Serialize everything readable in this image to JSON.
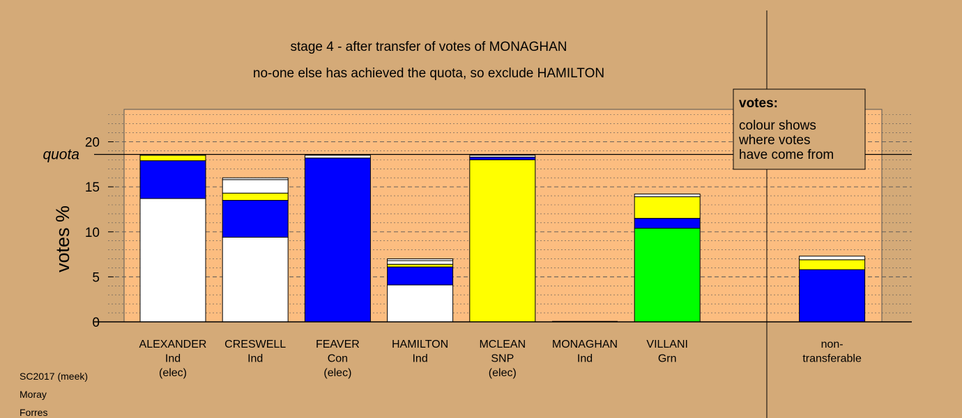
{
  "chart_data": {
    "type": "bar",
    "stacked": true,
    "title_lines": [
      "stage 4 - after transfer of votes of MONAGHAN",
      "no-one else has achieved the quota, so exclude HAMILTON"
    ],
    "ylabel": "votes %",
    "ylim": [
      0,
      23.6
    ],
    "yticks": [
      0,
      5,
      10,
      15,
      20
    ],
    "quota": 18.6,
    "quota_label": "quota",
    "categories": [
      {
        "lines": [
          "ALEXANDER",
          "Ind",
          "(elec)"
        ]
      },
      {
        "lines": [
          "CRESWELL",
          "Ind"
        ]
      },
      {
        "lines": [
          "FEAVER",
          "Con",
          "(elec)"
        ]
      },
      {
        "lines": [
          "HAMILTON",
          "Ind"
        ]
      },
      {
        "lines": [
          "MCLEAN",
          "SNP",
          "(elec)"
        ]
      },
      {
        "lines": [
          "MONAGHAN",
          "Ind"
        ]
      },
      {
        "lines": [
          "VILLANI",
          "Grn"
        ]
      },
      {
        "lines": []
      },
      {
        "lines": [
          "non-",
          "transferable"
        ]
      }
    ],
    "segments": [
      [
        {
          "value": 13.7,
          "color": "#ffffff"
        },
        {
          "value": 4.2,
          "color": "#0000ff"
        },
        {
          "value": 0.6,
          "color": "#ffff00"
        },
        {
          "value": 0.1,
          "color": "#ffffff"
        }
      ],
      [
        {
          "value": 9.4,
          "color": "#ffffff"
        },
        {
          "value": 4.1,
          "color": "#0000ff"
        },
        {
          "value": 0.8,
          "color": "#ffff00"
        },
        {
          "value": 1.5,
          "color": "#ffffff"
        },
        {
          "value": 0.2,
          "color": "#ffffff"
        }
      ],
      [
        {
          "value": 18.2,
          "color": "#0000ff"
        },
        {
          "value": 0.3,
          "color": "#ffffff"
        }
      ],
      [
        {
          "value": 4.1,
          "color": "#ffffff"
        },
        {
          "value": 2.0,
          "color": "#0000ff"
        },
        {
          "value": 0.3,
          "color": "#ffff00"
        },
        {
          "value": 0.4,
          "color": "#ffffff"
        },
        {
          "value": 0.2,
          "color": "#ffffff"
        }
      ],
      [
        {
          "value": 18.0,
          "color": "#ffff00"
        },
        {
          "value": 0.3,
          "color": "#0000ff"
        },
        {
          "value": 0.2,
          "color": "#ffffff"
        }
      ],
      [],
      [
        {
          "value": 10.4,
          "color": "#00ff00"
        },
        {
          "value": 1.1,
          "color": "#0000ff"
        },
        {
          "value": 2.4,
          "color": "#ffff00"
        },
        {
          "value": 0.3,
          "color": "#ffffff"
        }
      ],
      [],
      [
        {
          "value": 5.8,
          "color": "#0000ff"
        },
        {
          "value": 1.1,
          "color": "#ffff00"
        },
        {
          "value": 0.4,
          "color": "#ffffff"
        }
      ]
    ],
    "colors": {
      "background": "#d4aa78",
      "plot_area": "#fcbd80",
      "white": "#ffffff",
      "blue": "#0000ff",
      "yellow": "#ffff00",
      "green": "#00ff00"
    },
    "grid": true,
    "legend_position": "top-right"
  },
  "legend": {
    "title": "votes:",
    "lines": [
      "colour shows",
      "where votes",
      "have come from"
    ]
  },
  "footer": {
    "lines": [
      "SC2017 (meek)",
      "Moray",
      "Forres"
    ]
  }
}
